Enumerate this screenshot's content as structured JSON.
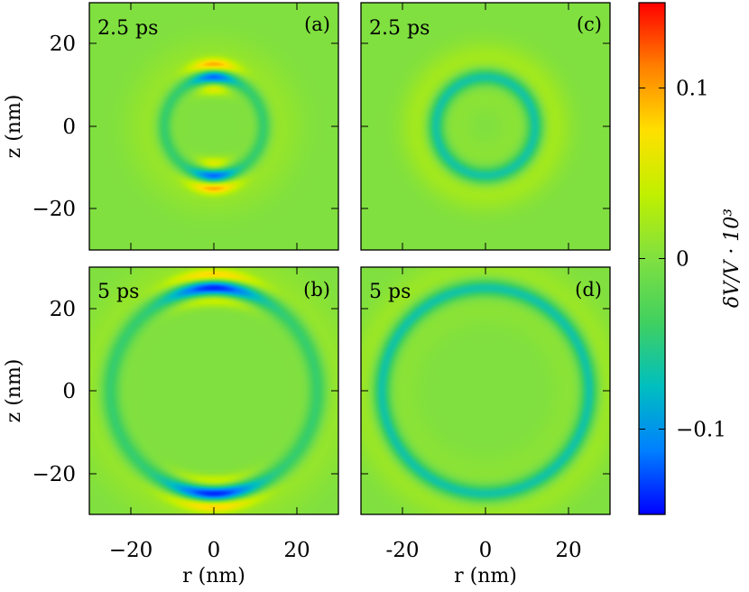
{
  "chart_data": [
    {
      "type": "heatmap",
      "panel_label": "(a)",
      "time_label": "2.5 ps",
      "xlabel": "",
      "ylabel": "z (nm)",
      "xlim": [
        -30,
        30
      ],
      "ylim": [
        -30,
        30
      ],
      "xticks": [
        "",
        "",
        ""
      ],
      "yticks": [
        "20",
        "0",
        "−20"
      ],
      "ring_radius_nm": 12,
      "pattern": "anisotropic",
      "ring_min": -0.05,
      "polar_min": -0.13,
      "polar_outer_max": 0.09,
      "polar_inner_max": 0.06
    },
    {
      "type": "heatmap",
      "panel_label": "(b)",
      "time_label": "5 ps",
      "xlabel": "r (nm)",
      "ylabel": "z (nm)",
      "xlim": [
        -30,
        30
      ],
      "ylim": [
        -30,
        30
      ],
      "xticks": [
        "−20",
        "0",
        "20"
      ],
      "yticks": [
        "20",
        "0",
        "−20"
      ],
      "ring_radius_nm": 25,
      "pattern": "anisotropic",
      "ring_min": -0.05,
      "polar_min": -0.15,
      "polar_outer_max": 0.09,
      "polar_inner_max": 0.06
    },
    {
      "type": "heatmap",
      "panel_label": "(c)",
      "time_label": "2.5 ps",
      "xlabel": "",
      "ylabel": "",
      "xlim": [
        -30,
        30
      ],
      "ylim": [
        -30,
        30
      ],
      "xticks": [
        "",
        "",
        ""
      ],
      "yticks": [
        "",
        "",
        ""
      ],
      "ring_radius_nm": 12,
      "pattern": "isotropic",
      "ring_min": -0.07,
      "halo_max": 0.02
    },
    {
      "type": "heatmap",
      "panel_label": "(d)",
      "time_label": "5 ps",
      "xlabel": "r (nm)",
      "ylabel": "",
      "xlim": [
        -30,
        30
      ],
      "ylim": [
        -30,
        30
      ],
      "xticks": [
        "-20",
        "0",
        "20"
      ],
      "yticks": [
        "",
        "",
        ""
      ],
      "ring_radius_nm": 25,
      "pattern": "isotropic",
      "ring_min": -0.07,
      "halo_max": 0.015
    }
  ],
  "colorbar": {
    "label": "δV/V · 10³",
    "vmin": -0.15,
    "vmax": 0.15,
    "tick_values": [
      0.1,
      0,
      -0.1
    ],
    "tick_labels": [
      "0.1",
      "0",
      "−0.1"
    ],
    "colormap": [
      "#0000ff",
      "#0080ff",
      "#00bfbf",
      "#40d060",
      "#80e040",
      "#c0f000",
      "#ffe000",
      "#ff8000",
      "#ff0000"
    ]
  }
}
